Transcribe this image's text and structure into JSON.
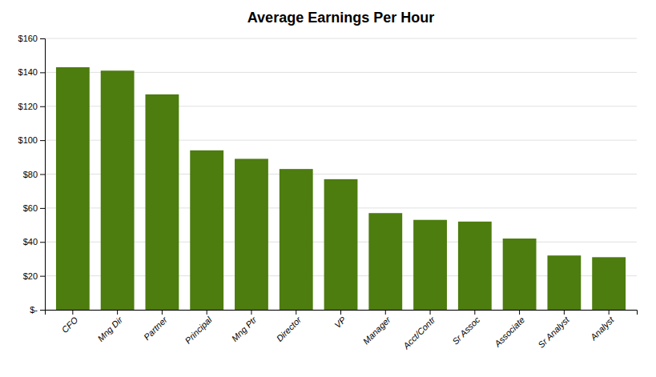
{
  "chart_data": {
    "type": "bar",
    "title": "Average Earnings Per Hour",
    "categories": [
      "CFO",
      "Mng Dir",
      "Partner",
      "Principal",
      "Mng Ptr",
      "Director",
      "VP",
      "Manager",
      "Acct/Contr",
      "Sr Assoc",
      "Associate",
      "Sr Analyst",
      "Analyst"
    ],
    "values": [
      143,
      141,
      127,
      94,
      89,
      83,
      77,
      57,
      53,
      52,
      42,
      32,
      31
    ],
    "color": "#4d7c0f",
    "ylim": [
      0,
      160
    ],
    "yticks": [
      {
        "value": 0,
        "label": "$-"
      },
      {
        "value": 20,
        "label": "$20"
      },
      {
        "value": 40,
        "label": "$40"
      },
      {
        "value": 60,
        "label": "$60"
      },
      {
        "value": 80,
        "label": "$80"
      },
      {
        "value": 100,
        "label": "$100"
      },
      {
        "value": 120,
        "label": "$120"
      },
      {
        "value": 140,
        "label": "$140"
      },
      {
        "value": 160,
        "label": "$160"
      }
    ],
    "grid": true
  }
}
